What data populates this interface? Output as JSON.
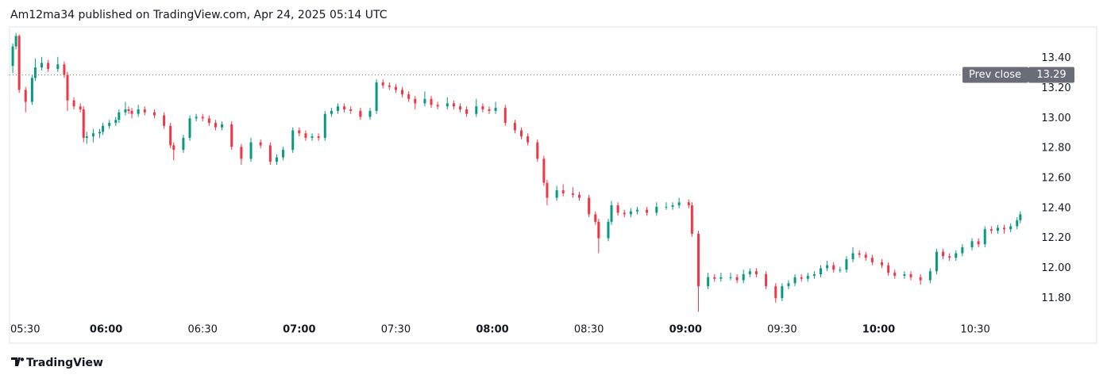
{
  "header": "Am12ma34 published on TradingView.com, Apr 24, 2025 05:14 UTC",
  "footer": "TradingView",
  "chart_data": {
    "type": "candlestick",
    "up_color": "#089981",
    "down_color": "#f23645",
    "xlim": [
      330,
      647
    ],
    "ylim": [
      11.5,
      13.61
    ],
    "xticks": [
      {
        "value": 330,
        "label": "05:30"
      },
      {
        "value": 360,
        "label": "06:00",
        "bold": true
      },
      {
        "value": 390,
        "label": "06:30"
      },
      {
        "value": 420,
        "label": "07:00",
        "bold": true
      },
      {
        "value": 450,
        "label": "07:30"
      },
      {
        "value": 480,
        "label": "08:00",
        "bold": true
      },
      {
        "value": 510,
        "label": "08:30"
      },
      {
        "value": 540,
        "label": "09:00",
        "bold": true
      },
      {
        "value": 570,
        "label": "09:30"
      },
      {
        "value": 600,
        "label": "10:00",
        "bold": true
      },
      {
        "value": 630,
        "label": "10:30"
      }
    ],
    "yticks": [
      {
        "value": 11.8,
        "label": "11.80"
      },
      {
        "value": 12,
        "label": "12.00"
      },
      {
        "value": 12.2,
        "label": "12.20"
      },
      {
        "value": 12.4,
        "label": "12.40"
      },
      {
        "value": 12.6,
        "label": "12.60"
      },
      {
        "value": 12.8,
        "label": "12.80"
      },
      {
        "value": 13,
        "label": "13.00"
      },
      {
        "value": 13.2,
        "label": "13.20"
      },
      {
        "value": 13.4,
        "label": "13.40"
      }
    ],
    "prev_close": {
      "label": "Prev close",
      "value": 13.29
    },
    "candles": [
      [
        331,
        13.35,
        13.5,
        13.3,
        13.48
      ],
      [
        332,
        13.48,
        13.57,
        13.46,
        13.55
      ],
      [
        333,
        13.55,
        13.56,
        13.17,
        13.19
      ],
      [
        335,
        13.19,
        13.21,
        13.04,
        13.11
      ],
      [
        337,
        13.11,
        13.29,
        13.09,
        13.27
      ],
      [
        338,
        13.27,
        13.4,
        13.25,
        13.34
      ],
      [
        340,
        13.34,
        13.41,
        13.32,
        13.37
      ],
      [
        342,
        13.37,
        13.39,
        13.31,
        13.33
      ],
      [
        345,
        13.33,
        13.41,
        13.31,
        13.36
      ],
      [
        347,
        13.36,
        13.38,
        13.27,
        13.29
      ],
      [
        348,
        13.29,
        13.31,
        13.05,
        13.12
      ],
      [
        350,
        13.12,
        13.14,
        13.06,
        13.08
      ],
      [
        352,
        13.08,
        13.1,
        13.04,
        13.06
      ],
      [
        353,
        13.06,
        13.08,
        12.84,
        12.87
      ],
      [
        354,
        12.87,
        12.91,
        12.83,
        12.88
      ],
      [
        356,
        12.88,
        12.93,
        12.84,
        12.9
      ],
      [
        358,
        12.9,
        12.93,
        12.87,
        12.91
      ],
      [
        359,
        12.91,
        12.97,
        12.89,
        12.95
      ],
      [
        361,
        12.95,
        12.99,
        12.93,
        12.97
      ],
      [
        363,
        12.97,
        13.01,
        12.95,
        12.99
      ],
      [
        364,
        12.99,
        13.06,
        12.97,
        13.04
      ],
      [
        366,
        13.04,
        13.11,
        13.02,
        13.06
      ],
      [
        367,
        13.06,
        13.08,
        13.03,
        13.05
      ],
      [
        368,
        13.05,
        13.07,
        13.0,
        13.03
      ],
      [
        370,
        13.03,
        13.09,
        13.01,
        13.06
      ],
      [
        372,
        13.06,
        13.08,
        13.02,
        13.04
      ],
      [
        375,
        13.04,
        13.06,
        13.0,
        13.02
      ],
      [
        378,
        13.02,
        13.04,
        12.93,
        12.95
      ],
      [
        380,
        12.95,
        12.97,
        12.8,
        12.82
      ],
      [
        381,
        12.82,
        12.84,
        12.72,
        12.79
      ],
      [
        384,
        12.79,
        12.89,
        12.77,
        12.87
      ],
      [
        386,
        12.87,
        13.02,
        12.85,
        13.0
      ],
      [
        388,
        13.0,
        13.03,
        12.98,
        13.01
      ],
      [
        390,
        13.01,
        13.03,
        12.98,
        13.0
      ],
      [
        392,
        13.0,
        13.02,
        12.95,
        12.97
      ],
      [
        394,
        12.97,
        12.99,
        12.92,
        12.94
      ],
      [
        396,
        12.94,
        12.98,
        12.92,
        12.96
      ],
      [
        399,
        12.96,
        12.98,
        12.79,
        12.81
      ],
      [
        402,
        12.81,
        12.83,
        12.69,
        12.73
      ],
      [
        405,
        12.73,
        12.87,
        12.71,
        12.84
      ],
      [
        408,
        12.84,
        12.86,
        12.8,
        12.82
      ],
      [
        411,
        12.82,
        12.84,
        12.69,
        12.71
      ],
      [
        413,
        12.71,
        12.76,
        12.69,
        12.74
      ],
      [
        415,
        12.74,
        12.81,
        12.72,
        12.79
      ],
      [
        418,
        12.79,
        12.94,
        12.77,
        12.92
      ],
      [
        420,
        12.92,
        12.94,
        12.88,
        12.9
      ],
      [
        422,
        12.9,
        12.92,
        12.85,
        12.87
      ],
      [
        424,
        12.87,
        12.9,
        12.85,
        12.88
      ],
      [
        426,
        12.88,
        12.9,
        12.85,
        12.87
      ],
      [
        428,
        12.87,
        13.05,
        12.85,
        13.03
      ],
      [
        430,
        13.03,
        13.07,
        13.01,
        13.05
      ],
      [
        432,
        13.05,
        13.1,
        13.03,
        13.08
      ],
      [
        434,
        13.08,
        13.1,
        13.04,
        13.06
      ],
      [
        436,
        13.06,
        13.08,
        13.03,
        13.05
      ],
      [
        439,
        13.05,
        13.07,
        12.99,
        13.01
      ],
      [
        442,
        13.01,
        13.07,
        12.99,
        13.05
      ],
      [
        444,
        13.05,
        13.26,
        13.03,
        13.24
      ],
      [
        446,
        13.24,
        13.26,
        13.2,
        13.22
      ],
      [
        448,
        13.22,
        13.24,
        13.19,
        13.21
      ],
      [
        450,
        13.21,
        13.23,
        13.17,
        13.19
      ],
      [
        452,
        13.19,
        13.21,
        13.14,
        13.16
      ],
      [
        454,
        13.16,
        13.18,
        13.11,
        13.13
      ],
      [
        456,
        13.13,
        13.15,
        13.06,
        13.1
      ],
      [
        459,
        13.1,
        13.18,
        13.08,
        13.13
      ],
      [
        461,
        13.13,
        13.15,
        13.07,
        13.09
      ],
      [
        463,
        13.09,
        13.11,
        13.06,
        13.08
      ],
      [
        466,
        13.08,
        13.14,
        13.06,
        13.1
      ],
      [
        468,
        13.1,
        13.12,
        13.06,
        13.08
      ],
      [
        470,
        13.08,
        13.1,
        13.04,
        13.06
      ],
      [
        472,
        13.06,
        13.08,
        13.01,
        13.03
      ],
      [
        475,
        13.03,
        13.13,
        13.01,
        13.08
      ],
      [
        477,
        13.08,
        13.1,
        13.04,
        13.06
      ],
      [
        479,
        13.06,
        13.08,
        13.03,
        13.05
      ],
      [
        481,
        13.05,
        13.11,
        13.03,
        13.07
      ],
      [
        484,
        13.07,
        13.09,
        12.95,
        12.97
      ],
      [
        487,
        12.97,
        12.99,
        12.9,
        12.92
      ],
      [
        489,
        12.92,
        12.94,
        12.86,
        12.88
      ],
      [
        491,
        12.88,
        12.9,
        12.82,
        12.84
      ],
      [
        494,
        12.84,
        12.86,
        12.71,
        12.73
      ],
      [
        496,
        12.73,
        12.75,
        12.55,
        12.57
      ],
      [
        497,
        12.57,
        12.59,
        12.42,
        12.47
      ],
      [
        500,
        12.47,
        12.55,
        12.45,
        12.52
      ],
      [
        502,
        12.52,
        12.56,
        12.48,
        12.5
      ],
      [
        505,
        12.5,
        12.54,
        12.47,
        12.49
      ],
      [
        507,
        12.49,
        12.51,
        12.45,
        12.47
      ],
      [
        510,
        12.47,
        12.49,
        12.34,
        12.36
      ],
      [
        512,
        12.36,
        12.38,
        12.29,
        12.31
      ],
      [
        513,
        12.31,
        12.33,
        12.1,
        12.2
      ],
      [
        516,
        12.2,
        12.33,
        12.18,
        12.31
      ],
      [
        517,
        12.31,
        12.45,
        12.29,
        12.42
      ],
      [
        519,
        12.42,
        12.44,
        12.35,
        12.37
      ],
      [
        521,
        12.37,
        12.39,
        12.34,
        12.36
      ],
      [
        523,
        12.36,
        12.4,
        12.34,
        12.38
      ],
      [
        525,
        12.38,
        12.41,
        12.36,
        12.39
      ],
      [
        528,
        12.39,
        12.41,
        12.35,
        12.37
      ],
      [
        531,
        12.37,
        12.44,
        12.35,
        12.41
      ],
      [
        534,
        12.41,
        12.44,
        12.39,
        12.41
      ],
      [
        536,
        12.41,
        12.44,
        12.39,
        12.42
      ],
      [
        538,
        12.42,
        12.47,
        12.4,
        12.44
      ],
      [
        541,
        12.44,
        12.46,
        12.4,
        12.42
      ],
      [
        542,
        12.42,
        12.44,
        12.21,
        12.23
      ],
      [
        544,
        12.23,
        12.25,
        11.71,
        11.88
      ],
      [
        547,
        11.88,
        11.97,
        11.86,
        11.94
      ],
      [
        549,
        11.94,
        11.96,
        11.91,
        11.93
      ],
      [
        551,
        11.93,
        11.97,
        11.91,
        11.94
      ],
      [
        554,
        11.94,
        11.97,
        11.92,
        11.94
      ],
      [
        556,
        11.94,
        11.96,
        11.9,
        11.92
      ],
      [
        558,
        11.92,
        11.99,
        11.9,
        11.96
      ],
      [
        560,
        11.96,
        12.0,
        11.94,
        11.98
      ],
      [
        562,
        11.98,
        12.0,
        11.94,
        11.96
      ],
      [
        565,
        11.96,
        11.98,
        11.86,
        11.88
      ],
      [
        568,
        11.88,
        11.9,
        11.77,
        11.8
      ],
      [
        570,
        11.8,
        11.9,
        11.78,
        11.88
      ],
      [
        572,
        11.88,
        11.92,
        11.86,
        11.9
      ],
      [
        574,
        11.9,
        11.96,
        11.88,
        11.94
      ],
      [
        576,
        11.94,
        11.96,
        11.91,
        11.93
      ],
      [
        578,
        11.93,
        11.97,
        11.91,
        11.95
      ],
      [
        580,
        11.95,
        11.98,
        11.93,
        11.96
      ],
      [
        582,
        11.96,
        12.02,
        11.94,
        12.0
      ],
      [
        584,
        12.0,
        12.05,
        11.98,
        12.02
      ],
      [
        586,
        12.02,
        12.04,
        11.97,
        11.99
      ],
      [
        588,
        11.99,
        12.01,
        11.97,
        11.99
      ],
      [
        590,
        11.99,
        12.08,
        11.97,
        12.06
      ],
      [
        592,
        12.06,
        12.14,
        12.04,
        12.1
      ],
      [
        594,
        12.1,
        12.12,
        12.07,
        12.09
      ],
      [
        596,
        12.09,
        12.11,
        12.05,
        12.07
      ],
      [
        598,
        12.07,
        12.09,
        12.02,
        12.04
      ],
      [
        601,
        12.04,
        12.06,
        12.0,
        12.02
      ],
      [
        603,
        12.02,
        12.04,
        11.95,
        11.97
      ],
      [
        605,
        11.97,
        11.99,
        11.93,
        11.95
      ],
      [
        608,
        11.95,
        11.98,
        11.93,
        11.96
      ],
      [
        610,
        11.96,
        11.98,
        11.92,
        11.94
      ],
      [
        613,
        11.94,
        11.96,
        11.89,
        11.92
      ],
      [
        616,
        11.92,
        12.0,
        11.9,
        11.98
      ],
      [
        618,
        11.98,
        12.13,
        11.96,
        12.11
      ],
      [
        620,
        12.11,
        12.13,
        12.06,
        12.08
      ],
      [
        622,
        12.08,
        12.1,
        12.05,
        12.07
      ],
      [
        624,
        12.07,
        12.12,
        12.05,
        12.1
      ],
      [
        626,
        12.1,
        12.16,
        12.08,
        12.14
      ],
      [
        629,
        12.14,
        12.2,
        12.12,
        12.18
      ],
      [
        631,
        12.18,
        12.2,
        12.14,
        12.16
      ],
      [
        633,
        12.16,
        12.28,
        12.14,
        12.26
      ],
      [
        635,
        12.26,
        12.28,
        12.23,
        12.25
      ],
      [
        637,
        12.25,
        12.29,
        12.23,
        12.27
      ],
      [
        639,
        12.27,
        12.29,
        12.23,
        12.26
      ],
      [
        641,
        12.26,
        12.3,
        12.24,
        12.28
      ],
      [
        643,
        12.28,
        12.34,
        12.26,
        12.32
      ],
      [
        644,
        12.32,
        12.38,
        12.3,
        12.36
      ]
    ]
  }
}
